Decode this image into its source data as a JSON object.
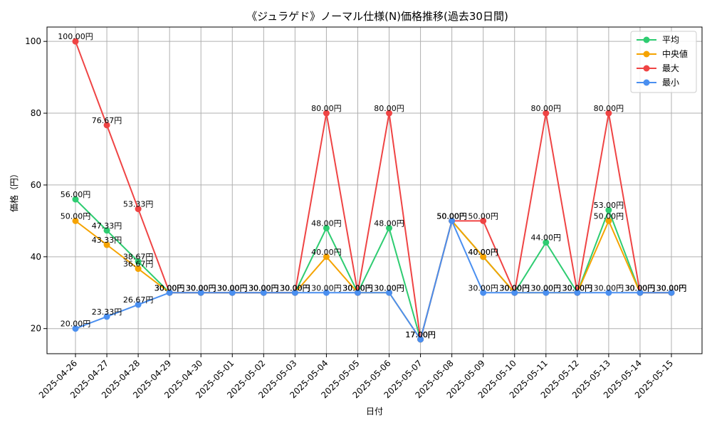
{
  "chart_data": {
    "type": "line",
    "title": "《ジュラゲド》ノーマル仕様(N)価格推移(過去30日間)",
    "xlabel": "日付",
    "ylabel": "価格（円）",
    "categories": [
      "2025-04-26",
      "2025-04-27",
      "2025-04-28",
      "2025-04-29",
      "2025-04-30",
      "2025-05-01",
      "2025-05-02",
      "2025-05-03",
      "2025-05-04",
      "2025-05-05",
      "2025-05-06",
      "2025-05-07",
      "2025-05-08",
      "2025-05-09",
      "2025-05-10",
      "2025-05-11",
      "2025-05-12",
      "2025-05-13",
      "2025-05-14",
      "2025-05-15"
    ],
    "yticks": [
      20,
      40,
      60,
      80,
      100
    ],
    "ylim": [
      13,
      104
    ],
    "grid": true,
    "legend_position": "top-right",
    "series": [
      {
        "name": "平均",
        "color": "#2ecc71",
        "values": [
          56,
          47.33,
          38.67,
          30,
          30,
          30,
          30,
          30,
          48,
          30,
          48,
          17,
          50,
          40,
          30,
          44,
          30,
          53,
          30,
          30
        ]
      },
      {
        "name": "中央値",
        "color": "#f5a300",
        "values": [
          50,
          43.33,
          36.67,
          30,
          30,
          30,
          30,
          30,
          40,
          30,
          30,
          17,
          50,
          40,
          30,
          30,
          30,
          50,
          30,
          30
        ]
      },
      {
        "name": "最大",
        "color": "#ef4444",
        "values": [
          100,
          76.67,
          53.33,
          30,
          30,
          30,
          30,
          30,
          80,
          30,
          80,
          17,
          50,
          50,
          30,
          80,
          30,
          80,
          30,
          30
        ]
      },
      {
        "name": "最小",
        "color": "#4a8ff0",
        "values": [
          20,
          23.33,
          26.67,
          30,
          30,
          30,
          30,
          30,
          30,
          30,
          30,
          17,
          50,
          30,
          30,
          30,
          30,
          30,
          30,
          30
        ]
      }
    ]
  }
}
